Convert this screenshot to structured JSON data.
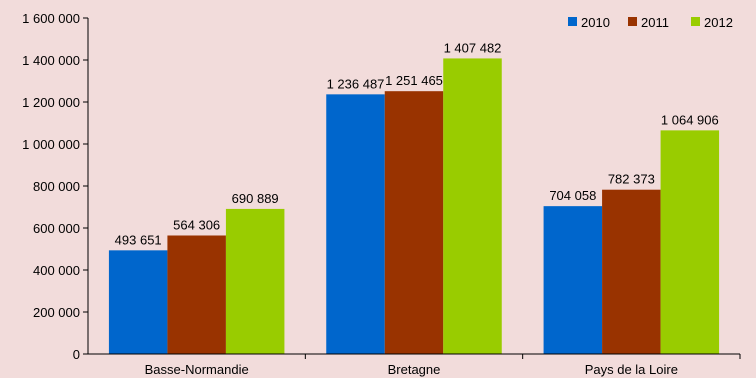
{
  "chart_data": {
    "type": "bar",
    "title": "",
    "xlabel": "",
    "ylabel": "",
    "categories": [
      "Basse-Normandie",
      "Bretagne",
      "Pays de la Loire"
    ],
    "series": [
      {
        "name": "2010",
        "color": "#0066cc",
        "values": [
          493651,
          1236487,
          704058
        ]
      },
      {
        "name": "2011",
        "color": "#993300",
        "values": [
          564306,
          1251465,
          782373
        ]
      },
      {
        "name": "2012",
        "color": "#99cc00",
        "values": [
          690889,
          1407482,
          1064906
        ]
      }
    ],
    "value_labels": [
      [
        "493 651",
        "1 236 487",
        "704 058"
      ],
      [
        "564 306",
        "1 251 465",
        "782 373"
      ],
      [
        "690 889",
        "1 407 482",
        "1 064 906"
      ]
    ],
    "ylim": [
      0,
      1600000
    ],
    "yticks": [
      0,
      200000,
      400000,
      600000,
      800000,
      1000000,
      1200000,
      1400000,
      1600000
    ],
    "ytick_labels": [
      "0",
      "200 000",
      "400 000",
      "600 000",
      "800 000",
      "1 000 000",
      "1 200 000",
      "1 400 000",
      "1 600 000"
    ],
    "grid": false,
    "legend_position": "top-right"
  }
}
